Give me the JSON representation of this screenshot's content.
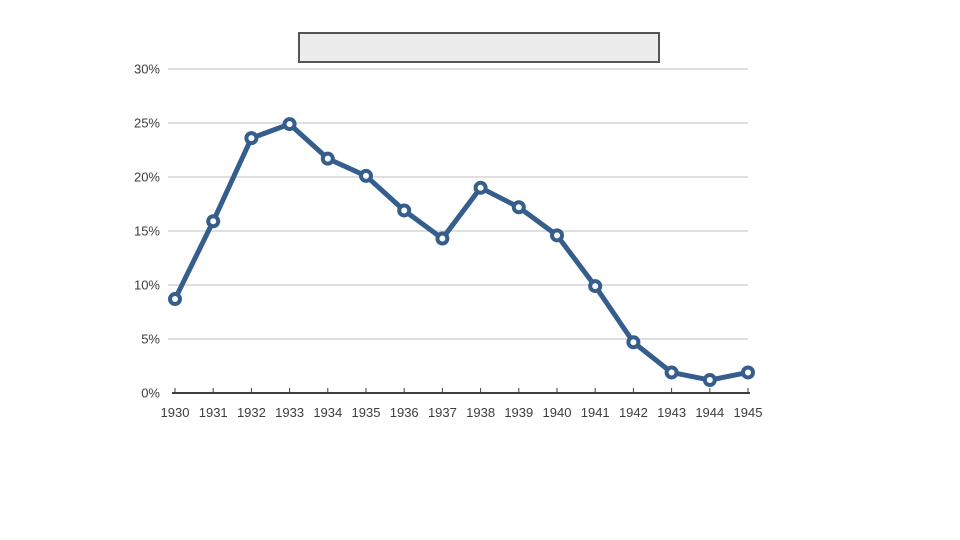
{
  "title_box": {
    "text": ""
  },
  "chart_data": {
    "type": "line",
    "title": "",
    "xlabel": "",
    "ylabel": "",
    "categories": [
      "1930",
      "1931",
      "1932",
      "1933",
      "1934",
      "1935",
      "1936",
      "1937",
      "1938",
      "1939",
      "1940",
      "1941",
      "1942",
      "1943",
      "1944",
      "1945"
    ],
    "series": [
      {
        "name": "",
        "values": [
          8.7,
          15.9,
          23.6,
          24.9,
          21.7,
          20.1,
          16.9,
          14.3,
          19.0,
          17.2,
          14.6,
          9.9,
          4.7,
          1.9,
          1.2,
          1.9
        ]
      }
    ],
    "ylim": [
      0,
      30
    ],
    "ytick_step": 5,
    "ytick_labels": [
      "0%",
      "5%",
      "10%",
      "15%",
      "20%",
      "25%",
      "30%"
    ],
    "grid": true,
    "legend": "none",
    "marker": "open-circle"
  },
  "colors": {
    "line": "#355e8d",
    "marker_fill": "#ffffff",
    "gridline": "#cccccc",
    "axis": "#3f3f3f",
    "tick_text": "#3d3d3d",
    "title_box_fill": "#ececec",
    "title_box_border": "#555555",
    "background": "#ffffff"
  }
}
